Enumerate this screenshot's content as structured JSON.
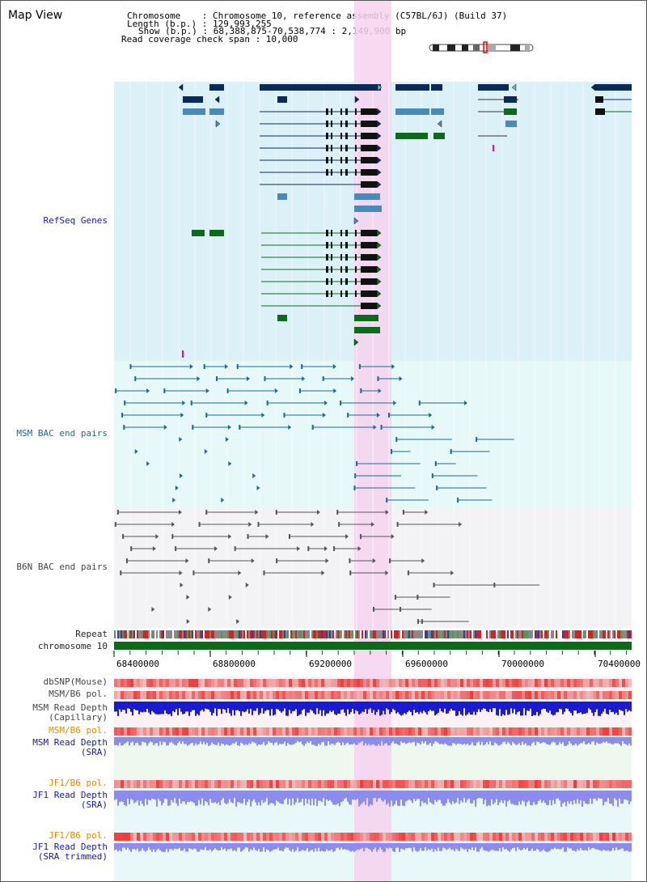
{
  "title": "Map View",
  "header": {
    "chromosome_label": "Chromosome    : Chromosome 10, reference assembly (C57BL/6J) (Build 37)",
    "length_label": "Length (b.p.) : 129,993,255",
    "show_label": "Show (b.p.) : 68,388,875-70,538,774 : 2,149,900 bp",
    "span_label": "Read coverage check span : 10,000"
  },
  "tracks": {
    "refseq": "RefSeq Genes",
    "msm_bac": "MSM BAC end pairs",
    "b6n_bac": "B6N BAC end pairs",
    "repeat": "Repeat",
    "chromosome": "chromosome 10",
    "dbsnp": "dbSNP(Mouse)",
    "msm_b6_pol_1": "MSM/B6 pol.",
    "msm_read_cap_1": "MSM Read Depth",
    "msm_read_cap_2": "(Capillary)",
    "msm_b6_pol_2": "MSM/B6 pol.",
    "msm_read_sra_1": "MSM Read Depth",
    "msm_read_sra_2": "(SRA)",
    "jf1_b6_pol_1": "JF1/B6 pol.",
    "jf1_read_sra_1": "JF1 Read Depth",
    "jf1_read_sra_2": "(SRA)",
    "jf1_b6_pol_2": "JF1/B6 pol.",
    "jf1_read_trim_1": "JF1 Read Depth",
    "jf1_read_trim_2": "(SRA trimmed)"
  },
  "axis": {
    "ticks": [
      "68400000",
      "68800000",
      "69200000",
      "69600000",
      "70000000",
      "70400000"
    ]
  },
  "colors": {
    "highlight": "#f5d6f0",
    "refseq_bg": "#dcf0f8",
    "msm_bg": "#e6f8f8",
    "b6n_bg": "#f2f2f2",
    "gene_navy": "#0a2a5c",
    "gene_steel": "#4a8ab8",
    "gene_green": "#0d6a1a",
    "bac_teal": "#1c6a8c",
    "bac_gray": "#555555",
    "chrom_green": "#0d6a1a",
    "snp_red": "#ef3a3a",
    "depth_blue": "#1a1ad0",
    "depth_light": "#8c8cf0"
  }
}
